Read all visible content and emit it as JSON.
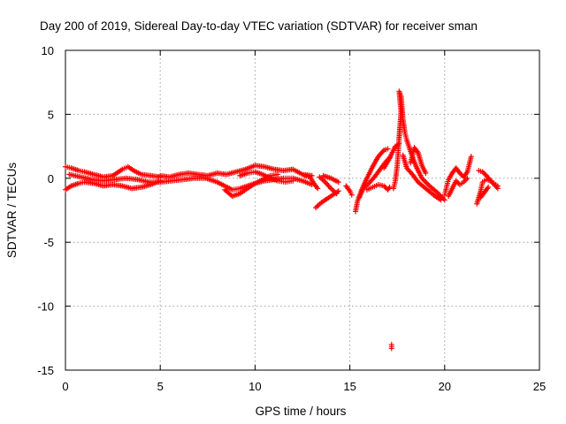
{
  "chart_data": {
    "type": "scatter",
    "title": "Day 200 of 2019, Sidereal Day-to-day VTEC variation (SDTVAR) for receiver sman",
    "xlabel": "GPS time / hours",
    "ylabel": "SDTVAR / TECUs",
    "xlim": [
      0,
      25
    ],
    "ylim": [
      -15,
      10
    ],
    "xticks": [
      0,
      5,
      10,
      15,
      20,
      25
    ],
    "yticks": [
      -15,
      -10,
      -5,
      0,
      5,
      10
    ],
    "xtick_labels": [
      "0",
      "5",
      "10",
      "15",
      "20",
      "25"
    ],
    "ytick_labels": [
      "-15",
      "-10",
      "-5",
      "0",
      "5",
      "10"
    ],
    "grid": true,
    "marker": "+",
    "color": "#ff0000",
    "tracks": [
      {
        "name": "track-upper-early",
        "points": [
          [
            0.0,
            0.9
          ],
          [
            0.3,
            0.8
          ],
          [
            0.7,
            0.6
          ],
          [
            1.0,
            0.5
          ],
          [
            1.5,
            0.3
          ],
          [
            2.0,
            0.1
          ],
          [
            2.5,
            0.2
          ],
          [
            3.0,
            0.7
          ],
          [
            3.3,
            0.9
          ],
          [
            3.6,
            0.6
          ],
          [
            4.0,
            0.3
          ],
          [
            4.5,
            0.2
          ],
          [
            5.0,
            0.1
          ]
        ]
      },
      {
        "name": "track-lower-early",
        "points": [
          [
            0.0,
            -0.9
          ],
          [
            0.3,
            -0.6
          ],
          [
            0.7,
            -0.4
          ],
          [
            1.0,
            -0.3
          ],
          [
            1.5,
            -0.4
          ],
          [
            2.0,
            -0.6
          ],
          [
            2.5,
            -0.5
          ],
          [
            3.0,
            -0.6
          ],
          [
            3.5,
            -0.8
          ],
          [
            4.0,
            -0.7
          ],
          [
            4.5,
            -0.5
          ],
          [
            5.0,
            -0.2
          ]
        ]
      },
      {
        "name": "track-mid-early",
        "points": [
          [
            0.2,
            0.3
          ],
          [
            0.8,
            0.1
          ],
          [
            1.4,
            -0.1
          ],
          [
            2.0,
            -0.2
          ],
          [
            2.6,
            -0.1
          ],
          [
            3.2,
            0.0
          ],
          [
            3.8,
            -0.1
          ],
          [
            4.4,
            -0.3
          ],
          [
            5.0,
            -0.3
          ]
        ]
      },
      {
        "name": "track-middle-day",
        "points": [
          [
            5.0,
            0.2
          ],
          [
            5.5,
            0.1
          ],
          [
            6.0,
            0.3
          ],
          [
            6.5,
            0.4
          ],
          [
            7.0,
            0.3
          ],
          [
            7.5,
            0.2
          ],
          [
            8.0,
            0.4
          ],
          [
            8.5,
            0.3
          ],
          [
            9.0,
            0.5
          ],
          [
            9.5,
            0.7
          ],
          [
            10.0,
            1.0
          ],
          [
            10.5,
            0.9
          ],
          [
            11.0,
            0.7
          ],
          [
            11.5,
            0.6
          ],
          [
            12.0,
            0.7
          ],
          [
            12.5,
            0.3
          ],
          [
            13.0,
            0.2
          ]
        ]
      },
      {
        "name": "track-middle-day-low",
        "points": [
          [
            5.0,
            -0.3
          ],
          [
            5.6,
            -0.2
          ],
          [
            6.2,
            -0.1
          ],
          [
            6.8,
            0.0
          ],
          [
            7.4,
            0.0
          ],
          [
            8.0,
            -0.3
          ],
          [
            8.4,
            -0.6
          ],
          [
            8.8,
            -0.9
          ],
          [
            9.2,
            -0.8
          ],
          [
            9.6,
            -0.6
          ],
          [
            10.0,
            -0.4
          ],
          [
            10.5,
            -0.2
          ],
          [
            11.0,
            -0.1
          ],
          [
            11.5,
            0.0
          ],
          [
            12.0,
            0.0
          ],
          [
            12.5,
            -0.2
          ],
          [
            13.0,
            -0.5
          ]
        ]
      },
      {
        "name": "track-middle-day-dip",
        "points": [
          [
            8.4,
            -0.9
          ],
          [
            8.8,
            -1.4
          ],
          [
            9.2,
            -1.2
          ],
          [
            9.6,
            -0.8
          ],
          [
            10.0,
            -0.4
          ],
          [
            10.4,
            -0.1
          ],
          [
            10.8,
            0.2
          ],
          [
            11.2,
            0.3
          ]
        ]
      },
      {
        "name": "track-middle-day-spread",
        "points": [
          [
            9.2,
            0.2
          ],
          [
            9.6,
            0.4
          ],
          [
            10.0,
            0.5
          ],
          [
            10.4,
            0.3
          ],
          [
            10.8,
            0.0
          ],
          [
            11.2,
            -0.2
          ],
          [
            11.6,
            -0.3
          ],
          [
            12.0,
            -0.2
          ]
        ]
      },
      {
        "name": "track-around-13",
        "points": [
          [
            12.6,
            0.2
          ],
          [
            12.9,
            0.1
          ],
          [
            13.1,
            -0.4
          ],
          [
            13.3,
            -0.8
          ]
        ]
      },
      {
        "name": "track-around-13b",
        "points": [
          [
            13.2,
            -2.3
          ],
          [
            13.5,
            -1.9
          ],
          [
            13.8,
            -1.6
          ],
          [
            14.1,
            -1.3
          ],
          [
            14.4,
            -1.0
          ]
        ]
      },
      {
        "name": "track-around-14",
        "points": [
          [
            13.4,
            0.1
          ],
          [
            13.7,
            -0.3
          ],
          [
            14.0,
            -0.8
          ],
          [
            14.3,
            -1.2
          ]
        ]
      },
      {
        "name": "track-around-14b",
        "points": [
          [
            13.6,
            0.2
          ],
          [
            14.0,
            0.0
          ],
          [
            14.4,
            -0.3
          ]
        ]
      },
      {
        "name": "track-around-14c",
        "points": [
          [
            14.8,
            -0.6
          ],
          [
            15.0,
            -1.0
          ],
          [
            15.1,
            -1.3
          ]
        ]
      },
      {
        "name": "track-around-15-2",
        "points": [
          [
            15.3,
            -2.6
          ],
          [
            15.4,
            -1.8
          ],
          [
            15.6,
            -1.0
          ],
          [
            15.8,
            -0.3
          ],
          [
            16.0,
            0.3
          ],
          [
            16.2,
            0.9
          ],
          [
            16.5,
            1.7
          ],
          [
            16.8,
            2.2
          ],
          [
            17.0,
            2.3
          ]
        ]
      },
      {
        "name": "track-around-15-3",
        "points": [
          [
            15.5,
            -1.5
          ],
          [
            15.7,
            -0.8
          ],
          [
            16.0,
            -0.4
          ],
          [
            16.3,
            0.1
          ],
          [
            16.6,
            0.7
          ],
          [
            16.9,
            1.3
          ],
          [
            17.1,
            1.6
          ]
        ]
      },
      {
        "name": "track-around-16",
        "points": [
          [
            15.9,
            -0.9
          ],
          [
            16.2,
            -0.7
          ],
          [
            16.5,
            -0.5
          ],
          [
            16.8,
            -0.6
          ],
          [
            17.0,
            -0.9
          ],
          [
            17.1,
            -0.7
          ]
        ]
      },
      {
        "name": "track-around-17",
        "points": [
          [
            16.8,
            0.8
          ],
          [
            17.0,
            1.3
          ],
          [
            17.2,
            1.9
          ],
          [
            17.4,
            2.5
          ],
          [
            17.6,
            2.7
          ]
        ]
      },
      {
        "name": "track-around-17b",
        "points": [
          [
            17.3,
            -0.8
          ],
          [
            17.4,
            -0.2
          ],
          [
            17.5,
            1.0
          ],
          [
            17.6,
            3.2
          ],
          [
            17.7,
            5.2
          ],
          [
            17.6,
            6.8
          ],
          [
            17.7,
            6.4
          ],
          [
            17.8,
            4.6
          ],
          [
            17.9,
            3.6
          ],
          [
            18.0,
            3.0
          ],
          [
            18.2,
            2.1
          ],
          [
            18.5,
            0.9
          ],
          [
            18.8,
            0.0
          ],
          [
            19.2,
            -0.6
          ],
          [
            19.6,
            -1.1
          ],
          [
            20.0,
            -1.7
          ]
        ]
      },
      {
        "name": "track-around-18",
        "points": [
          [
            17.8,
            1.8
          ],
          [
            18.0,
            0.8
          ],
          [
            18.3,
            0.3
          ],
          [
            18.6,
            -0.3
          ],
          [
            19.0,
            -0.8
          ],
          [
            19.5,
            -1.4
          ],
          [
            19.8,
            -1.7
          ]
        ]
      },
      {
        "name": "track-around-18b",
        "points": [
          [
            18.2,
            1.2
          ],
          [
            18.4,
            2.4
          ],
          [
            18.6,
            2.0
          ],
          [
            18.8,
            1.0
          ],
          [
            19.0,
            0.4
          ]
        ]
      },
      {
        "name": "track-around-20",
        "points": [
          [
            20.0,
            -1.3
          ],
          [
            20.1,
            -0.7
          ],
          [
            20.2,
            -0.1
          ],
          [
            20.4,
            0.4
          ],
          [
            20.6,
            0.8
          ],
          [
            20.8,
            0.4
          ],
          [
            21.0,
            0.1
          ],
          [
            21.2,
            0.5
          ],
          [
            21.4,
            1.7
          ]
        ]
      },
      {
        "name": "track-around-20b",
        "points": [
          [
            20.2,
            -1.4
          ],
          [
            20.4,
            -0.8
          ],
          [
            20.6,
            -0.2
          ],
          [
            20.8,
            -0.5
          ],
          [
            21.0,
            -0.3
          ],
          [
            21.2,
            0.0
          ]
        ]
      },
      {
        "name": "track-around-22",
        "points": [
          [
            21.7,
            -2.0
          ],
          [
            21.9,
            -1.0
          ],
          [
            22.0,
            -0.3
          ],
          [
            22.2,
            -0.1
          ],
          [
            22.4,
            -0.2
          ],
          [
            22.6,
            -0.4
          ],
          [
            22.8,
            -0.6
          ]
        ]
      },
      {
        "name": "track-around-22b",
        "points": [
          [
            21.8,
            0.6
          ],
          [
            22.0,
            0.5
          ],
          [
            22.2,
            0.2
          ],
          [
            22.5,
            -0.3
          ],
          [
            22.8,
            -0.8
          ]
        ]
      },
      {
        "name": "track-around-22c",
        "points": [
          [
            21.9,
            -1.5
          ],
          [
            22.1,
            -1.1
          ],
          [
            22.3,
            -0.7
          ]
        ]
      },
      {
        "name": "outlier-low",
        "points": [
          [
            17.2,
            -13.3
          ],
          [
            17.2,
            -13.0
          ]
        ]
      }
    ]
  }
}
